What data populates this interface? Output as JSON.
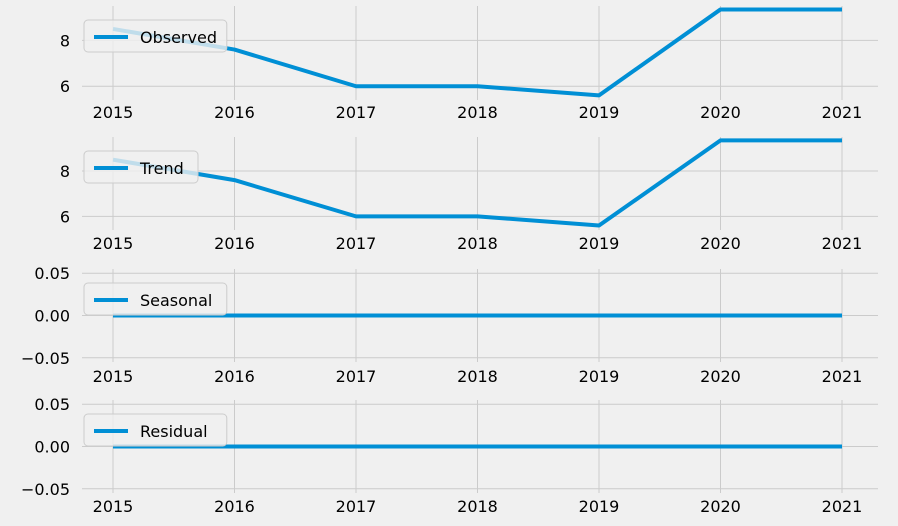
{
  "chart_data": [
    {
      "type": "line",
      "x": [
        "2015",
        "2016",
        "2017",
        "2018",
        "2019",
        "2020",
        "2021"
      ],
      "series": [
        {
          "name": "Observed",
          "values": [
            8.5,
            7.6,
            6.0,
            6.0,
            5.6,
            9.35,
            9.35
          ]
        }
      ],
      "ylim": [
        5.4,
        9.5
      ],
      "yticks": [
        "6",
        "8"
      ],
      "ytick_values": [
        6,
        8
      ],
      "legend": "upper-left",
      "grid": true,
      "color": "#008fd5"
    },
    {
      "type": "line",
      "x": [
        "2015",
        "2016",
        "2017",
        "2018",
        "2019",
        "2020",
        "2021"
      ],
      "series": [
        {
          "name": "Trend",
          "values": [
            8.5,
            7.6,
            6.0,
            6.0,
            5.6,
            9.35,
            9.35
          ]
        }
      ],
      "ylim": [
        5.4,
        9.5
      ],
      "yticks": [
        "6",
        "8"
      ],
      "ytick_values": [
        6,
        8
      ],
      "legend": "upper-left",
      "grid": true,
      "color": "#008fd5"
    },
    {
      "type": "line",
      "x": [
        "2015",
        "2016",
        "2017",
        "2018",
        "2019",
        "2020",
        "2021"
      ],
      "series": [
        {
          "name": "Seasonal",
          "values": [
            0,
            0,
            0,
            0,
            0,
            0,
            0
          ]
        }
      ],
      "ylim": [
        -0.055,
        0.055
      ],
      "yticks": [
        "0.05",
        "0.00",
        "−0.05"
      ],
      "ytick_values": [
        0.05,
        0,
        -0.05
      ],
      "legend": "upper-left",
      "grid": true,
      "color": "#008fd5"
    },
    {
      "type": "line",
      "x": [
        "2015",
        "2016",
        "2017",
        "2018",
        "2019",
        "2020",
        "2021"
      ],
      "series": [
        {
          "name": "Residual",
          "values": [
            0,
            0,
            0,
            0,
            0,
            0,
            0
          ]
        }
      ],
      "ylim": [
        -0.055,
        0.055
      ],
      "yticks": [
        "0.05",
        "0.00",
        "−0.05"
      ],
      "ytick_values": [
        0.05,
        0,
        -0.05
      ],
      "legend": "upper-left",
      "grid": true,
      "color": "#008fd5"
    }
  ]
}
